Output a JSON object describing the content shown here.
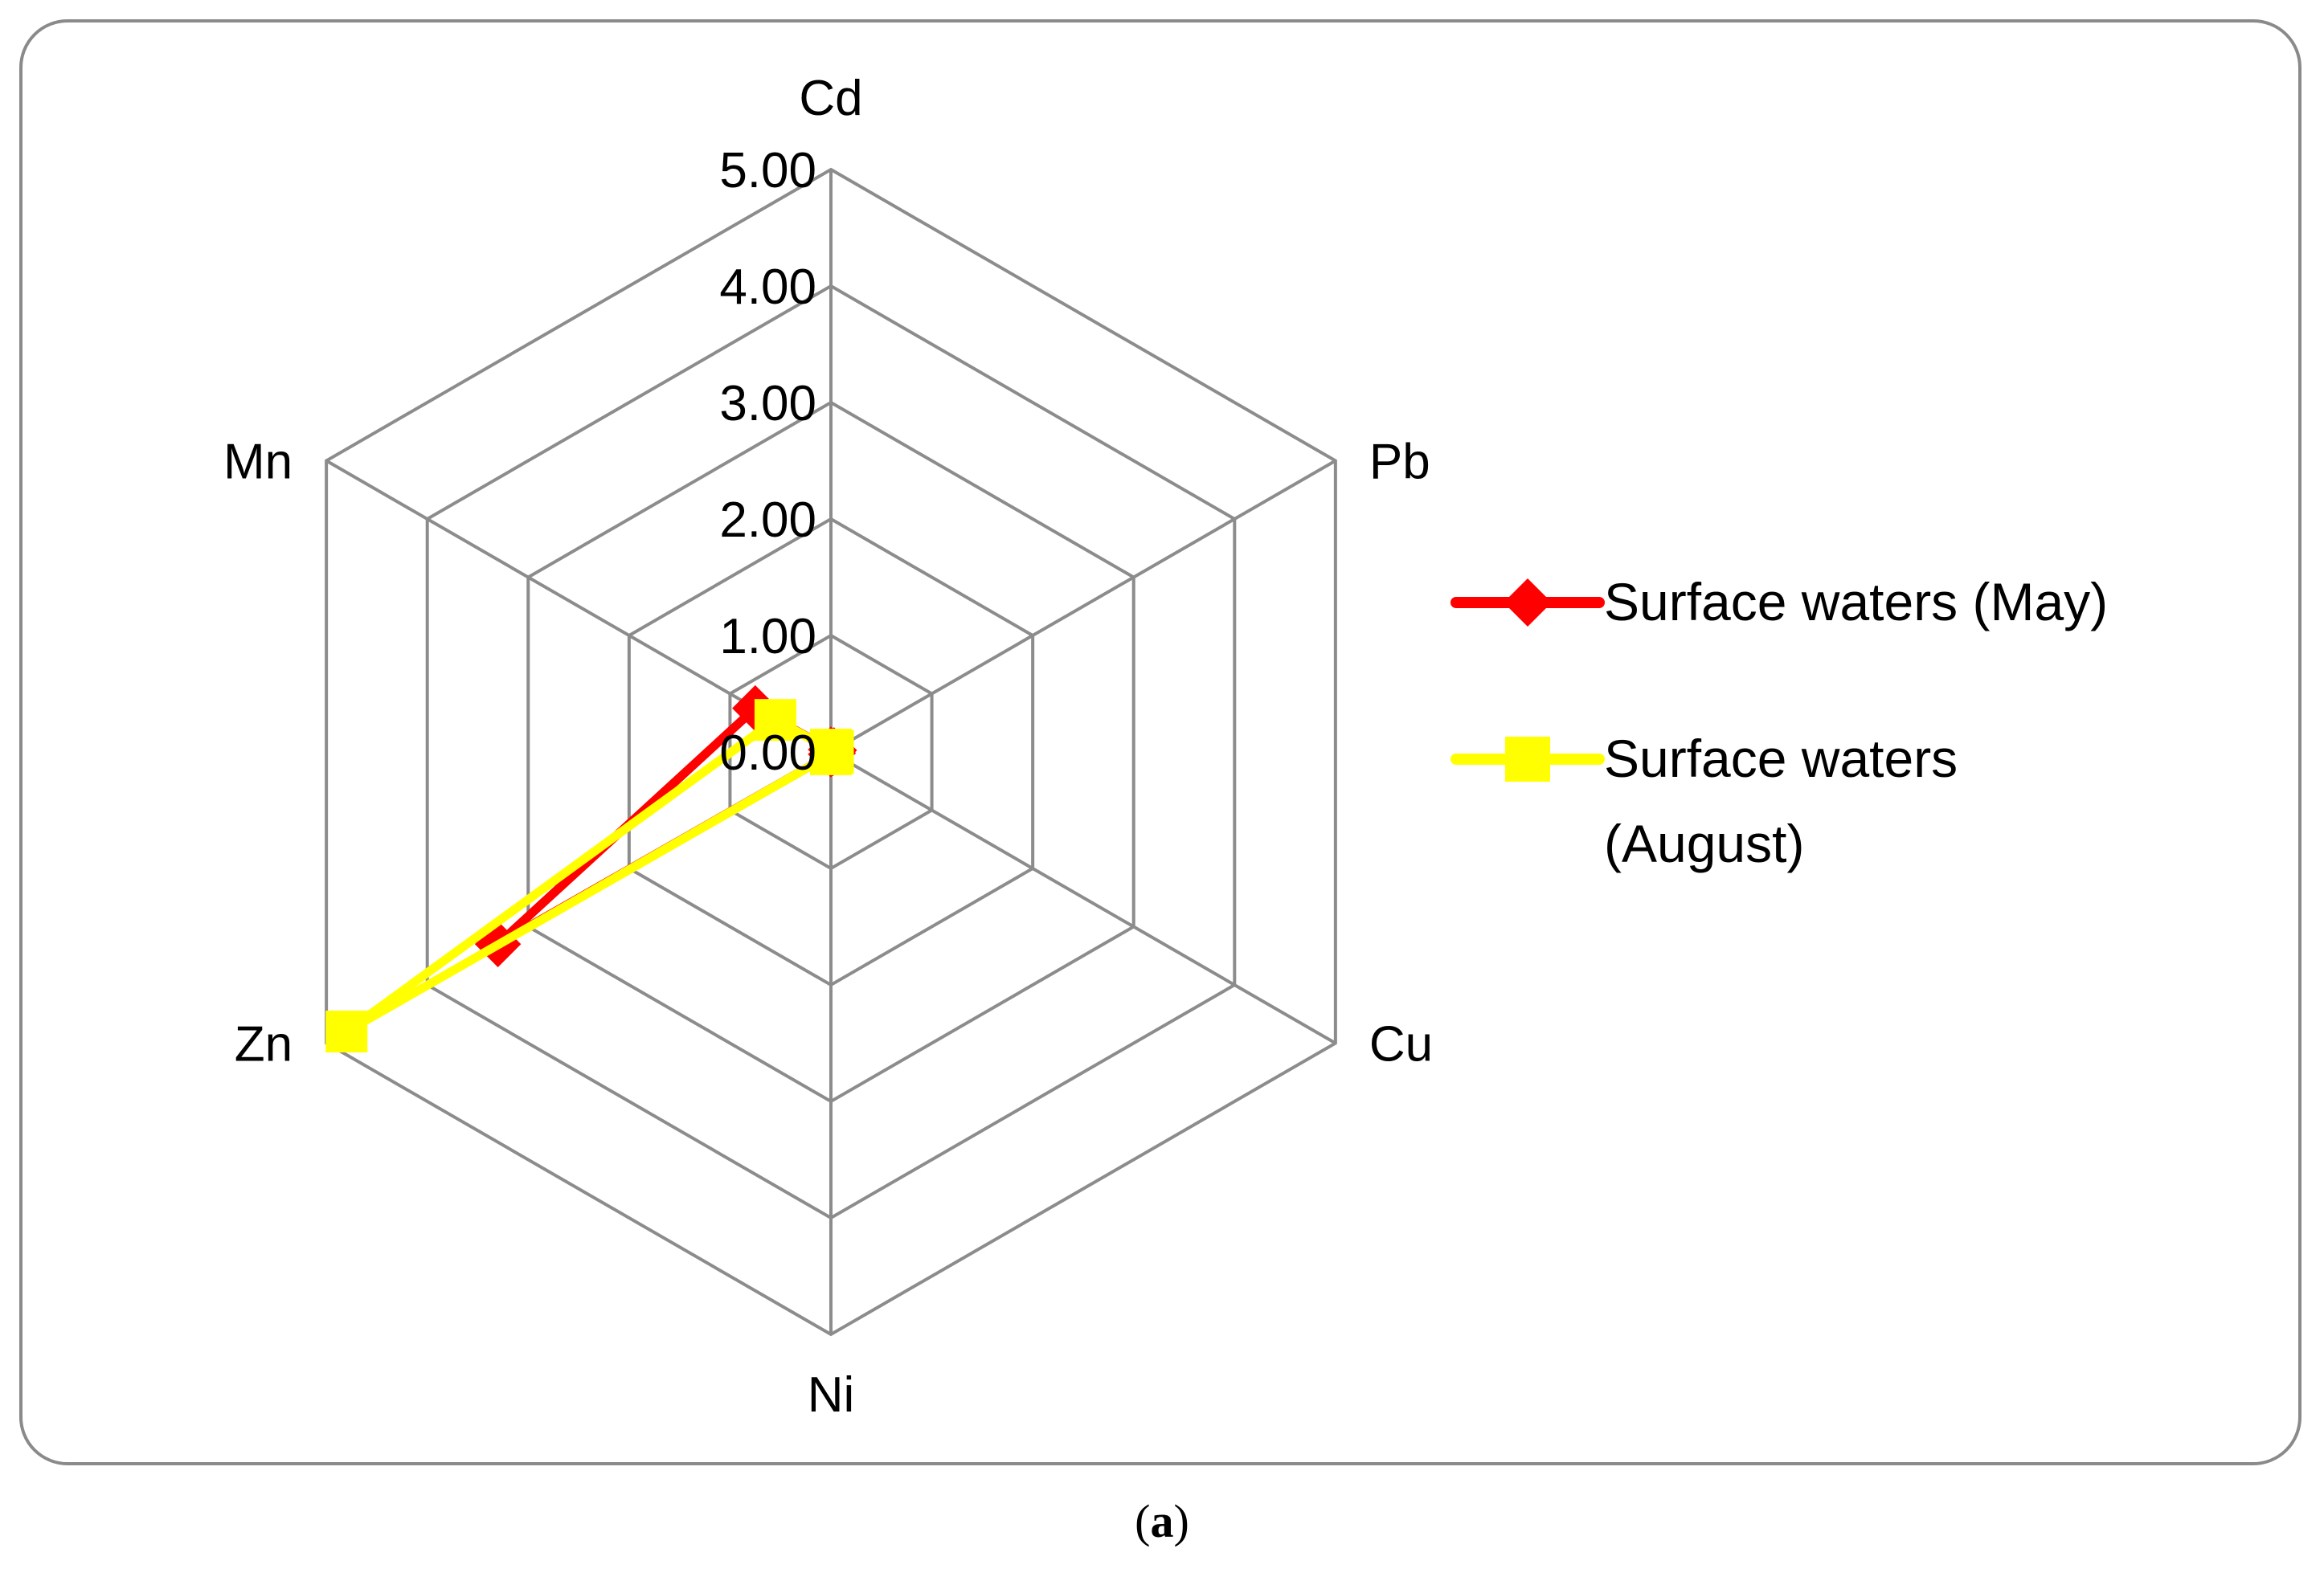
{
  "chart_data": {
    "type": "radar",
    "axes": [
      "Cd",
      "Pb",
      "Cu",
      "Ni",
      "Zn",
      "Mn"
    ],
    "rlim": [
      0,
      5
    ],
    "ticks": [
      "0.00",
      "1.00",
      "2.00",
      "3.00",
      "4.00",
      "5.00"
    ],
    "tick_values": [
      0,
      1,
      2,
      3,
      4,
      5
    ],
    "series": [
      {
        "name": "Surface waters (May)",
        "name_lines": [
          "Surface waters (May)"
        ],
        "color": "#ff0000",
        "marker": "diamond",
        "values": [
          0.02,
          0.03,
          0.02,
          0.02,
          3.3,
          0.75
        ]
      },
      {
        "name": "Surface waters (August)",
        "name_lines": [
          "Surface waters",
          "(August)"
        ],
        "color": "#ffff00",
        "marker": "square",
        "values": [
          0.02,
          0.02,
          0.02,
          0.02,
          4.8,
          0.55
        ]
      }
    ],
    "legend_position": "right"
  },
  "caption": {
    "open": "(",
    "letter": "a",
    "close": ")"
  }
}
